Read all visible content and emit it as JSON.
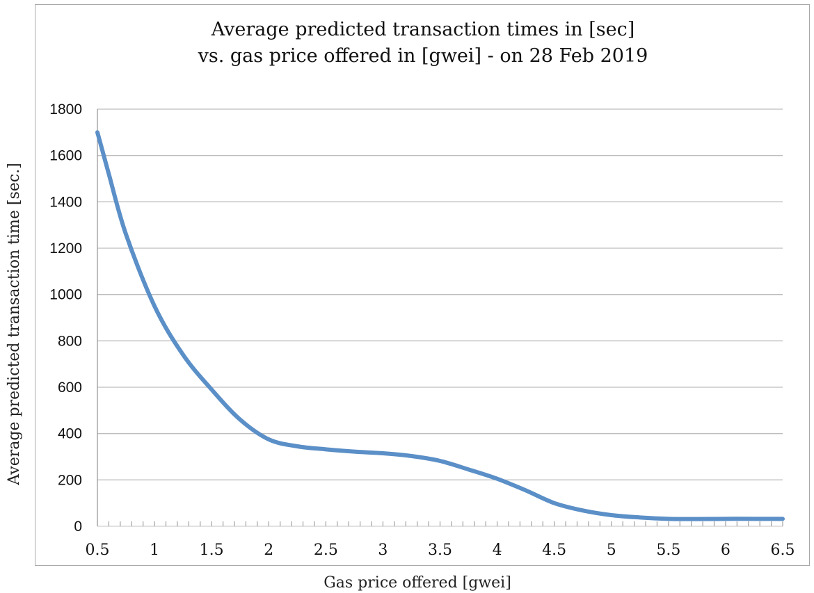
{
  "chart_data": {
    "type": "line",
    "title": "Average predicted transaction times in [sec]",
    "subtitle": "vs. gas price offered in [gwei] - on 28 Feb 2019",
    "xlabel": "Gas price offered [gwei]",
    "ylabel": "Average predicted transaction time [sec.]",
    "xlim": [
      0.5,
      6.5
    ],
    "ylim": [
      0,
      1800
    ],
    "x_ticks": [
      "0.5",
      "1",
      "1.5",
      "2",
      "2.5",
      "3",
      "3.5",
      "4",
      "4.5",
      "5",
      "5.5",
      "6",
      "6.5"
    ],
    "y_ticks": [
      "0",
      "200",
      "400",
      "600",
      "800",
      "1000",
      "1200",
      "1400",
      "1600",
      "1800"
    ],
    "grid": "horizontal",
    "legend": "none",
    "series": [
      {
        "color": "#5b8fc7",
        "x": [
          0.5,
          0.6,
          0.75,
          1.0,
          1.25,
          1.5,
          1.75,
          2.0,
          2.25,
          2.5,
          2.75,
          3.0,
          3.25,
          3.5,
          3.75,
          4.0,
          4.25,
          4.5,
          4.75,
          5.0,
          5.25,
          5.5,
          5.75,
          6.0,
          6.25,
          6.5
        ],
        "values": [
          1700,
          1520,
          1260,
          950,
          740,
          590,
          460,
          375,
          345,
          332,
          322,
          315,
          303,
          282,
          245,
          205,
          155,
          100,
          68,
          48,
          38,
          32,
          31,
          32,
          32,
          32
        ]
      }
    ]
  }
}
